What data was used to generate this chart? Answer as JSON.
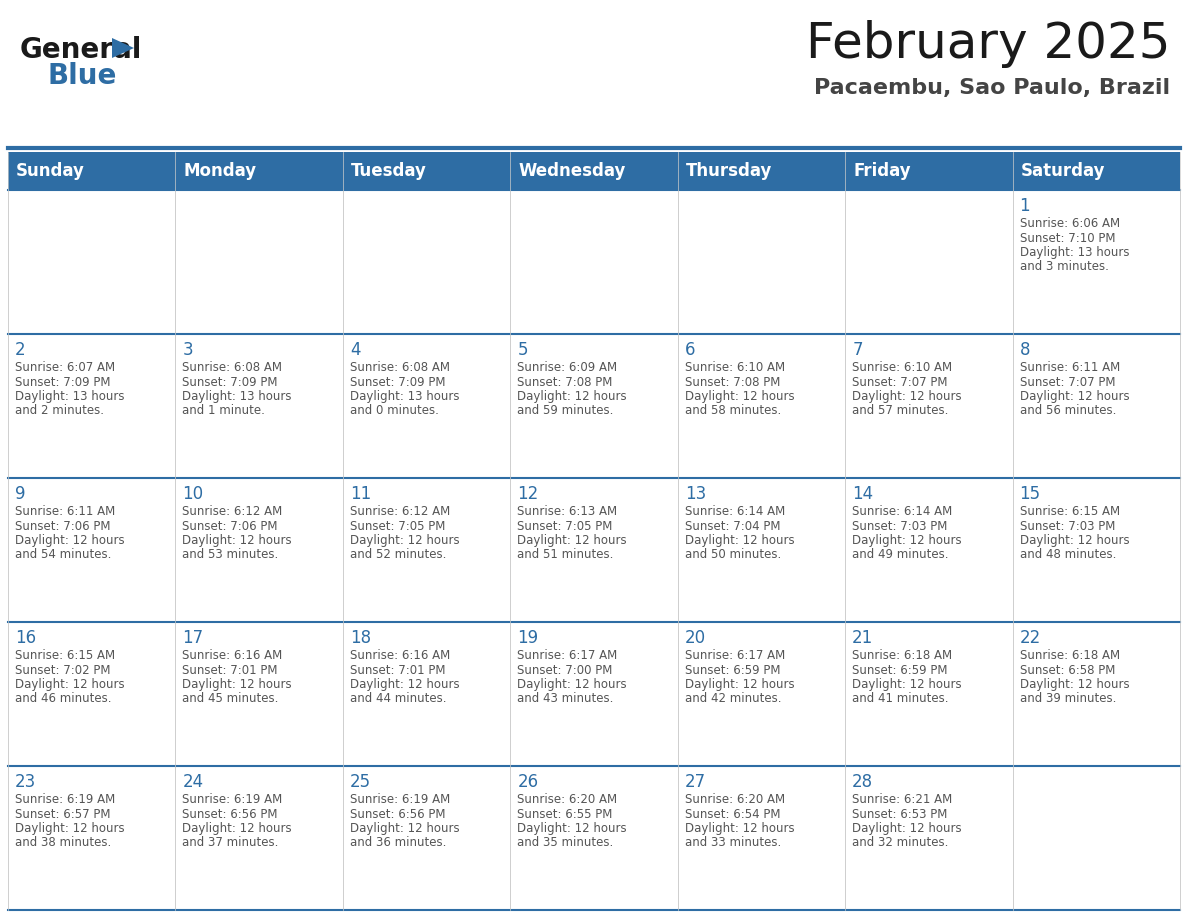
{
  "title": "February 2025",
  "subtitle": "Pacaembu, Sao Paulo, Brazil",
  "days_of_week": [
    "Sunday",
    "Monday",
    "Tuesday",
    "Wednesday",
    "Thursday",
    "Friday",
    "Saturday"
  ],
  "header_bg": "#2E6DA4",
  "header_text": "#FFFFFF",
  "cell_bg": "#FFFFFF",
  "border_color_blue": "#2E6DA4",
  "border_color_light": "#CCCCCC",
  "text_color": "#555555",
  "day_num_color": "#2E6DA4",
  "calendar_data": [
    [
      null,
      null,
      null,
      null,
      null,
      null,
      {
        "day": 1,
        "sunrise": "6:06 AM",
        "sunset": "7:10 PM",
        "daylight": "13 hours",
        "daylight2": "and 3 minutes."
      }
    ],
    [
      {
        "day": 2,
        "sunrise": "6:07 AM",
        "sunset": "7:09 PM",
        "daylight": "13 hours",
        "daylight2": "and 2 minutes."
      },
      {
        "day": 3,
        "sunrise": "6:08 AM",
        "sunset": "7:09 PM",
        "daylight": "13 hours",
        "daylight2": "and 1 minute."
      },
      {
        "day": 4,
        "sunrise": "6:08 AM",
        "sunset": "7:09 PM",
        "daylight": "13 hours",
        "daylight2": "and 0 minutes."
      },
      {
        "day": 5,
        "sunrise": "6:09 AM",
        "sunset": "7:08 PM",
        "daylight": "12 hours",
        "daylight2": "and 59 minutes."
      },
      {
        "day": 6,
        "sunrise": "6:10 AM",
        "sunset": "7:08 PM",
        "daylight": "12 hours",
        "daylight2": "and 58 minutes."
      },
      {
        "day": 7,
        "sunrise": "6:10 AM",
        "sunset": "7:07 PM",
        "daylight": "12 hours",
        "daylight2": "and 57 minutes."
      },
      {
        "day": 8,
        "sunrise": "6:11 AM",
        "sunset": "7:07 PM",
        "daylight": "12 hours",
        "daylight2": "and 56 minutes."
      }
    ],
    [
      {
        "day": 9,
        "sunrise": "6:11 AM",
        "sunset": "7:06 PM",
        "daylight": "12 hours",
        "daylight2": "and 54 minutes."
      },
      {
        "day": 10,
        "sunrise": "6:12 AM",
        "sunset": "7:06 PM",
        "daylight": "12 hours",
        "daylight2": "and 53 minutes."
      },
      {
        "day": 11,
        "sunrise": "6:12 AM",
        "sunset": "7:05 PM",
        "daylight": "12 hours",
        "daylight2": "and 52 minutes."
      },
      {
        "day": 12,
        "sunrise": "6:13 AM",
        "sunset": "7:05 PM",
        "daylight": "12 hours",
        "daylight2": "and 51 minutes."
      },
      {
        "day": 13,
        "sunrise": "6:14 AM",
        "sunset": "7:04 PM",
        "daylight": "12 hours",
        "daylight2": "and 50 minutes."
      },
      {
        "day": 14,
        "sunrise": "6:14 AM",
        "sunset": "7:03 PM",
        "daylight": "12 hours",
        "daylight2": "and 49 minutes."
      },
      {
        "day": 15,
        "sunrise": "6:15 AM",
        "sunset": "7:03 PM",
        "daylight": "12 hours",
        "daylight2": "and 48 minutes."
      }
    ],
    [
      {
        "day": 16,
        "sunrise": "6:15 AM",
        "sunset": "7:02 PM",
        "daylight": "12 hours",
        "daylight2": "and 46 minutes."
      },
      {
        "day": 17,
        "sunrise": "6:16 AM",
        "sunset": "7:01 PM",
        "daylight": "12 hours",
        "daylight2": "and 45 minutes."
      },
      {
        "day": 18,
        "sunrise": "6:16 AM",
        "sunset": "7:01 PM",
        "daylight": "12 hours",
        "daylight2": "and 44 minutes."
      },
      {
        "day": 19,
        "sunrise": "6:17 AM",
        "sunset": "7:00 PM",
        "daylight": "12 hours",
        "daylight2": "and 43 minutes."
      },
      {
        "day": 20,
        "sunrise": "6:17 AM",
        "sunset": "6:59 PM",
        "daylight": "12 hours",
        "daylight2": "and 42 minutes."
      },
      {
        "day": 21,
        "sunrise": "6:18 AM",
        "sunset": "6:59 PM",
        "daylight": "12 hours",
        "daylight2": "and 41 minutes."
      },
      {
        "day": 22,
        "sunrise": "6:18 AM",
        "sunset": "6:58 PM",
        "daylight": "12 hours",
        "daylight2": "and 39 minutes."
      }
    ],
    [
      {
        "day": 23,
        "sunrise": "6:19 AM",
        "sunset": "6:57 PM",
        "daylight": "12 hours",
        "daylight2": "and 38 minutes."
      },
      {
        "day": 24,
        "sunrise": "6:19 AM",
        "sunset": "6:56 PM",
        "daylight": "12 hours",
        "daylight2": "and 37 minutes."
      },
      {
        "day": 25,
        "sunrise": "6:19 AM",
        "sunset": "6:56 PM",
        "daylight": "12 hours",
        "daylight2": "and 36 minutes."
      },
      {
        "day": 26,
        "sunrise": "6:20 AM",
        "sunset": "6:55 PM",
        "daylight": "12 hours",
        "daylight2": "and 35 minutes."
      },
      {
        "day": 27,
        "sunrise": "6:20 AM",
        "sunset": "6:54 PM",
        "daylight": "12 hours",
        "daylight2": "and 33 minutes."
      },
      {
        "day": 28,
        "sunrise": "6:21 AM",
        "sunset": "6:53 PM",
        "daylight": "12 hours",
        "daylight2": "and 32 minutes."
      },
      null
    ]
  ],
  "logo_general_color": "#1a1a1a",
  "logo_blue_color": "#2E6DA4",
  "title_fontsize": 36,
  "subtitle_fontsize": 16,
  "header_fontsize": 12,
  "day_num_fontsize": 12,
  "cell_text_fontsize": 8.5
}
